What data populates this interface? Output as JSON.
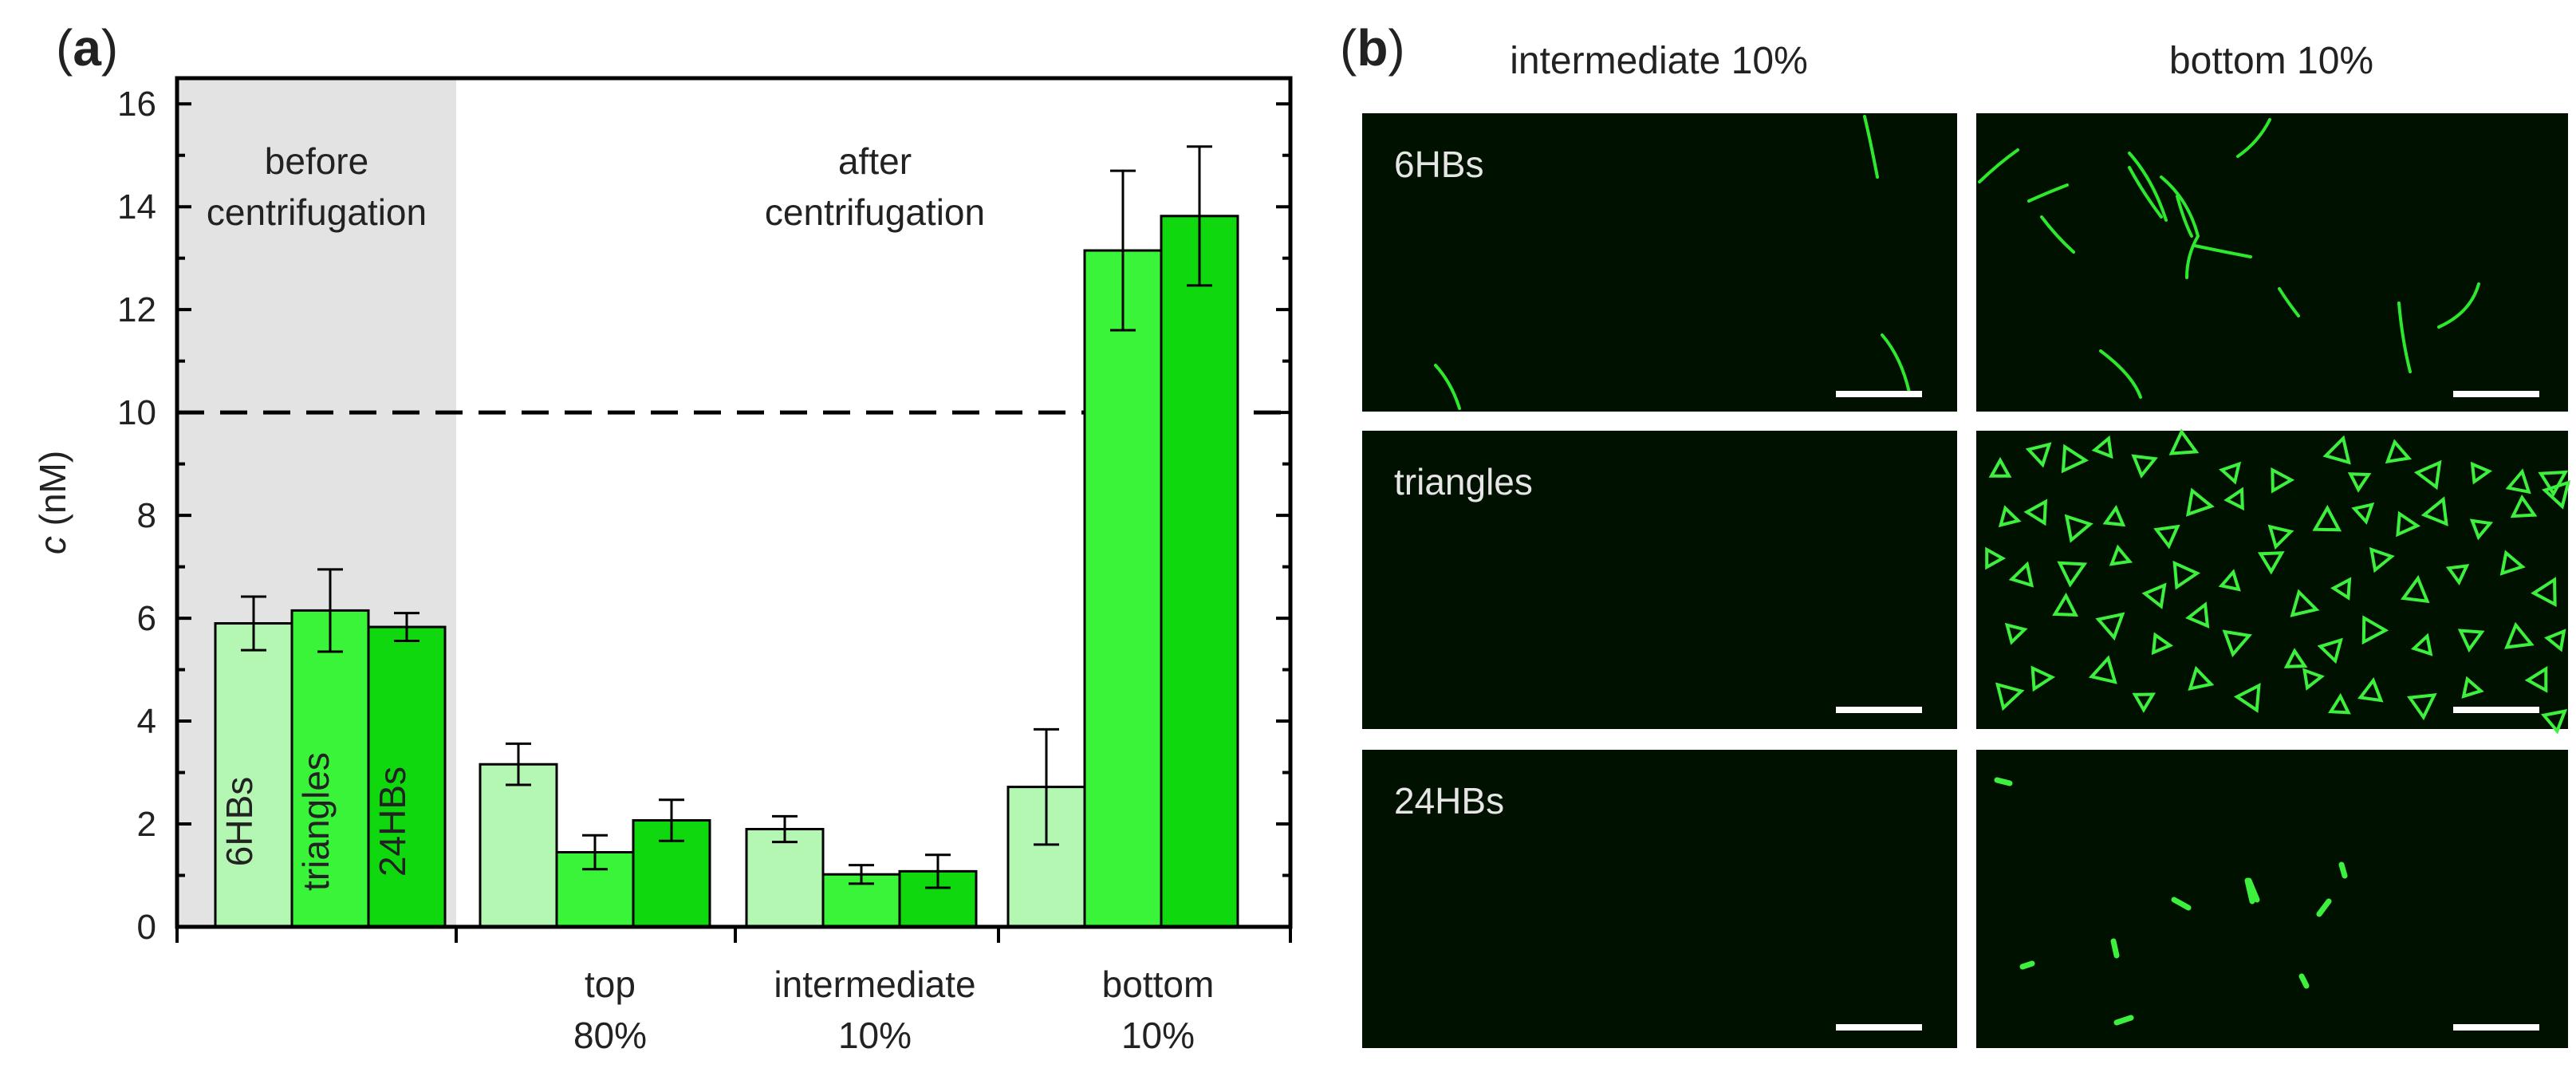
{
  "panel_a": {
    "label_open": "(",
    "label_letter": "a",
    "label_close": ")"
  },
  "panel_b": {
    "label_open": "(",
    "label_letter": "b",
    "label_close": ")",
    "columns": [
      "intermediate 10%",
      "bottom 10%"
    ],
    "rows": [
      "6HBs",
      "triangles",
      "24HBs"
    ],
    "image_background": "#001100"
  },
  "chart_data": {
    "type": "bar",
    "ylabel_var": "c",
    "ylabel_unit": " (nM)",
    "ylim": [
      0,
      16.5
    ],
    "yticks": [
      0,
      2,
      4,
      6,
      8,
      10,
      12,
      14,
      16
    ],
    "reference_line": 10,
    "region_labels": [
      {
        "lines": [
          "before",
          "centrifugation"
        ]
      },
      {
        "lines": [
          "after",
          "centrifugation"
        ]
      }
    ],
    "series": [
      {
        "name": "6HBs",
        "color": "#b3f7b3"
      },
      {
        "name": "triangles",
        "color": "#39f439"
      },
      {
        "name": "24HBs",
        "color": "#0fd80f"
      }
    ],
    "groups": [
      {
        "label": [
          "",
          ""
        ],
        "values": [
          5.9,
          6.15,
          5.83
        ],
        "errors": [
          0.52,
          0.8,
          0.27
        ]
      },
      {
        "label": [
          "top",
          "80%"
        ],
        "values": [
          3.16,
          1.45,
          2.07
        ],
        "errors": [
          0.4,
          0.33,
          0.4
        ]
      },
      {
        "label": [
          "intermediate",
          "10%"
        ],
        "values": [
          1.9,
          1.02,
          1.08
        ],
        "errors": [
          0.25,
          0.18,
          0.32
        ]
      },
      {
        "label": [
          "bottom",
          "10%"
        ],
        "values": [
          2.72,
          13.15,
          13.82
        ],
        "errors": [
          1.12,
          1.55,
          1.35
        ]
      }
    ],
    "colors": {
      "shade": "#e3e3e3",
      "axis": "#000000"
    }
  }
}
